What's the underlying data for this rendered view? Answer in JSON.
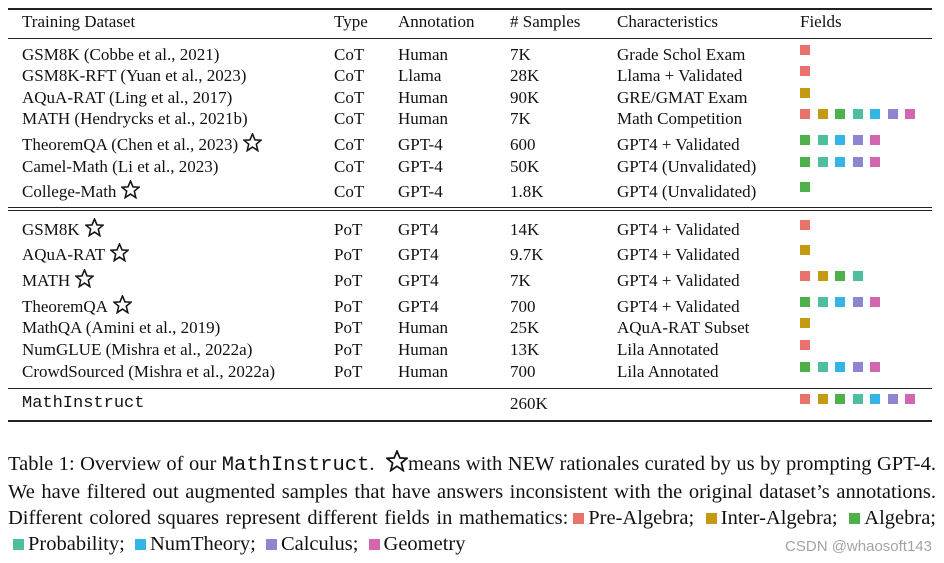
{
  "table": {
    "header": [
      "Training Dataset",
      "Type",
      "Annotation",
      "# Samples",
      "Characteristics",
      "Fields"
    ],
    "groups": [
      {
        "rows": [
          {
            "cells": [
              "GSM8K (Cobbe et al., 2021)",
              "CoT",
              "Human",
              "7K",
              "Grade Schol Exam"
            ],
            "new": false,
            "fields": [
              "#e8736c"
            ]
          },
          {
            "cells": [
              "GSM8K-RFT (Yuan et al., 2023)",
              "CoT",
              "Llama",
              "28K",
              "Llama + Validated"
            ],
            "new": false,
            "fields": [
              "#e8736c"
            ]
          },
          {
            "cells": [
              "AQuA-RAT (Ling et al., 2017)",
              "CoT",
              "Human",
              "90K",
              "GRE/GMAT Exam"
            ],
            "new": false,
            "fields": [
              "#c49a12"
            ]
          },
          {
            "cells": [
              "MATH (Hendrycks et al., 2021b)",
              "CoT",
              "Human",
              "7K",
              "Math Competition"
            ],
            "new": false,
            "fields": [
              "#e8736c",
              "#c49a12",
              "#4db04a",
              "#4dbfa0",
              "#33b5e5",
              "#8c86d0",
              "#d266b0"
            ]
          },
          {
            "cells": [
              "TheoremQA (Chen et al., 2023)",
              "CoT",
              "GPT-4",
              "600",
              "GPT4 + Validated"
            ],
            "new": true,
            "fields": [
              "#4db04a",
              "#4dbfa0",
              "#33b5e5",
              "#8c86d0",
              "#d266b0"
            ]
          },
          {
            "cells": [
              "Camel-Math (Li et al., 2023)",
              "CoT",
              "GPT-4",
              "50K",
              "GPT4 (Unvalidated)"
            ],
            "new": false,
            "fields": [
              "#4db04a",
              "#4dbfa0",
              "#33b5e5",
              "#8c86d0",
              "#d266b0"
            ]
          },
          {
            "cells": [
              "College-Math",
              "CoT",
              "GPT-4",
              "1.8K",
              "GPT4 (Unvalidated)"
            ],
            "new": true,
            "fields": [
              "#4db04a"
            ]
          }
        ]
      },
      {
        "rows": [
          {
            "cells": [
              "GSM8K",
              "PoT",
              "GPT4",
              "14K",
              "GPT4 + Validated"
            ],
            "new": true,
            "fields": [
              "#e8736c"
            ]
          },
          {
            "cells": [
              "AQuA-RAT",
              "PoT",
              "GPT4",
              "9.7K",
              "GPT4 + Validated"
            ],
            "new": true,
            "fields": [
              "#c49a12"
            ]
          },
          {
            "cells": [
              "MATH",
              "PoT",
              "GPT4",
              "7K",
              "GPT4 + Validated"
            ],
            "new": true,
            "fields": [
              "#e8736c",
              "#c49a12",
              "#4db04a",
              "#4dbfa0"
            ]
          },
          {
            "cells": [
              "TheoremQA",
              "PoT",
              "GPT4",
              "700",
              "GPT4 + Validated"
            ],
            "new": true,
            "fields": [
              "#4db04a",
              "#4dbfa0",
              "#33b5e5",
              "#8c86d0",
              "#d266b0"
            ]
          },
          {
            "cells": [
              "MathQA (Amini et al., 2019)",
              "PoT",
              "Human",
              "25K",
              "AQuA-RAT Subset"
            ],
            "new": false,
            "fields": [
              "#c49a12"
            ]
          },
          {
            "cells": [
              "NumGLUE (Mishra et al., 2022a)",
              "PoT",
              "Human",
              "13K",
              "Lila Annotated"
            ],
            "new": false,
            "fields": [
              "#e8736c"
            ]
          },
          {
            "cells": [
              "CrowdSourced (Mishra et al., 2022a)",
              "PoT",
              "Human",
              "700",
              "Lila Annotated"
            ],
            "new": false,
            "fields": [
              "#4db04a",
              "#4dbfa0",
              "#33b5e5",
              "#8c86d0",
              "#d266b0"
            ]
          }
        ]
      }
    ],
    "total": {
      "name": "MathInstruct",
      "samples": "260K",
      "fields": [
        "#e8736c",
        "#c49a12",
        "#4db04a",
        "#4dbfa0",
        "#33b5e5",
        "#8c86d0",
        "#d266b0"
      ]
    }
  },
  "caption": {
    "lead": "Table 1: Overview of our ",
    "code": "MathInstruct",
    "after_code": ".",
    "star_text": "means with NEW rationales curated by us by prompting GPT-4. We have filtered out augmented samples that have answers inconsistent with the original dataset’s annotations. Different colored squares represent different fields in mathematics:",
    "legend": [
      {
        "name": "Pre-Algebra;",
        "color": "#e8736c"
      },
      {
        "name": "Inter-Algebra;",
        "color": "#c49a12"
      },
      {
        "name": "Algebra;",
        "color": "#4db04a"
      },
      {
        "name": "Probability;",
        "color": "#4dbfa0"
      },
      {
        "name": "NumTheory;",
        "color": "#33b5e5"
      },
      {
        "name": "Calculus;",
        "color": "#8c86d0"
      },
      {
        "name": "Geometry",
        "color": "#d266b0"
      }
    ]
  },
  "watermark": "CSDN @whaosoft143"
}
